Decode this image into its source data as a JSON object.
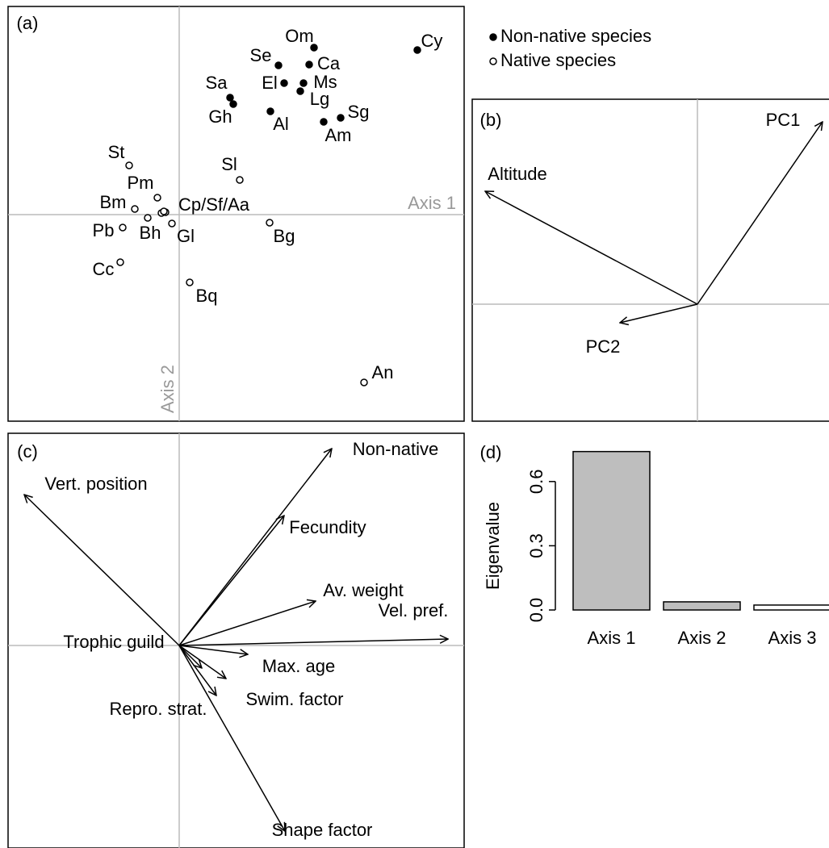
{
  "chart_data": [
    {
      "type": "scatter",
      "panel": "(a)",
      "x_label": "Axis 1",
      "y_label": "Axis 2",
      "xlim": [
        -212,
        353
      ],
      "ylim": [
        -256,
        258
      ],
      "series": [
        {
          "name": "Non-native species",
          "marker": "filled",
          "color": "#000000",
          "labels": [
            "Om",
            "Cy",
            "Se",
            "Ca",
            "El",
            "Ms",
            "Lg",
            "Sa",
            "Gh",
            "Al",
            "Sg",
            "Am"
          ],
          "x": [
            167,
            295,
            123,
            161,
            130,
            154,
            150,
            63,
            67,
            113,
            200,
            179
          ],
          "values": [
            207,
            204,
            185,
            186,
            163,
            163,
            153,
            145,
            137,
            128,
            120,
            115
          ]
        },
        {
          "name": "Native species",
          "marker": "open",
          "color": "#000000",
          "labels": [
            "St",
            "Sl",
            "Pm",
            "Bm",
            "Cp/Sf/Aa",
            null,
            null,
            "Bh",
            "Gl",
            "Pb",
            "Bg",
            "Cc",
            "Bq",
            "An"
          ],
          "x": [
            -62,
            75,
            -27,
            -55,
            -17,
            -22,
            -19,
            -39,
            -9,
            -70,
            112,
            -73,
            13,
            229
          ],
          "values": [
            61,
            43,
            21,
            7,
            3,
            2,
            4,
            -4,
            -11,
            -16,
            -10,
            -59,
            -84,
            -208
          ]
        }
      ]
    },
    {
      "type": "biplot",
      "panel": "(b)",
      "xlim": [
        -279,
        166
      ],
      "ylim": [
        -145,
        254
      ],
      "arrows": [
        {
          "label": "PC1",
          "x": 155,
          "y": 226
        },
        {
          "label": "Altitude",
          "x": -263,
          "y": 140
        },
        {
          "label": "PC2",
          "x": -96,
          "y": -23
        }
      ]
    },
    {
      "type": "biplot",
      "panel": "(c)",
      "xlim": [
        -212,
        353
      ],
      "ylim": [
        -251,
        263
      ],
      "arrows": [
        {
          "label": "Non-native",
          "x": 189,
          "y": 244
        },
        {
          "label": "Vert. position",
          "x": -192,
          "y": 187
        },
        {
          "label": "Fecundity",
          "x": 130,
          "y": 161
        },
        {
          "label": "Av. weight",
          "x": 169,
          "y": 55
        },
        {
          "label": "Vel. pref.",
          "x": 333,
          "y": 8
        },
        {
          "label": "Max. age",
          "x": 85,
          "y": -11
        },
        {
          "label": "Trophic guild",
          "x": 28,
          "y": -28
        },
        {
          "label": "Swim. factor",
          "x": 58,
          "y": -41
        },
        {
          "label": "Repro. strat.",
          "x": 46,
          "y": -62
        },
        {
          "label": "Shape factor",
          "x": 131,
          "y": -230
        }
      ]
    },
    {
      "type": "bar",
      "panel": "(d)",
      "y_label": "Eigenvalue",
      "categories": [
        "Axis 1",
        "Axis 2",
        "Axis 3"
      ],
      "values": [
        0.74,
        0.038,
        0.023
      ],
      "colors": [
        "#bebebe",
        "#bebebe",
        "#ffffff"
      ],
      "ylim": [
        0,
        0.75
      ],
      "yticks": [
        {
          "value": 0,
          "label": "0.0"
        },
        0.3,
        0.6
      ]
    }
  ]
}
